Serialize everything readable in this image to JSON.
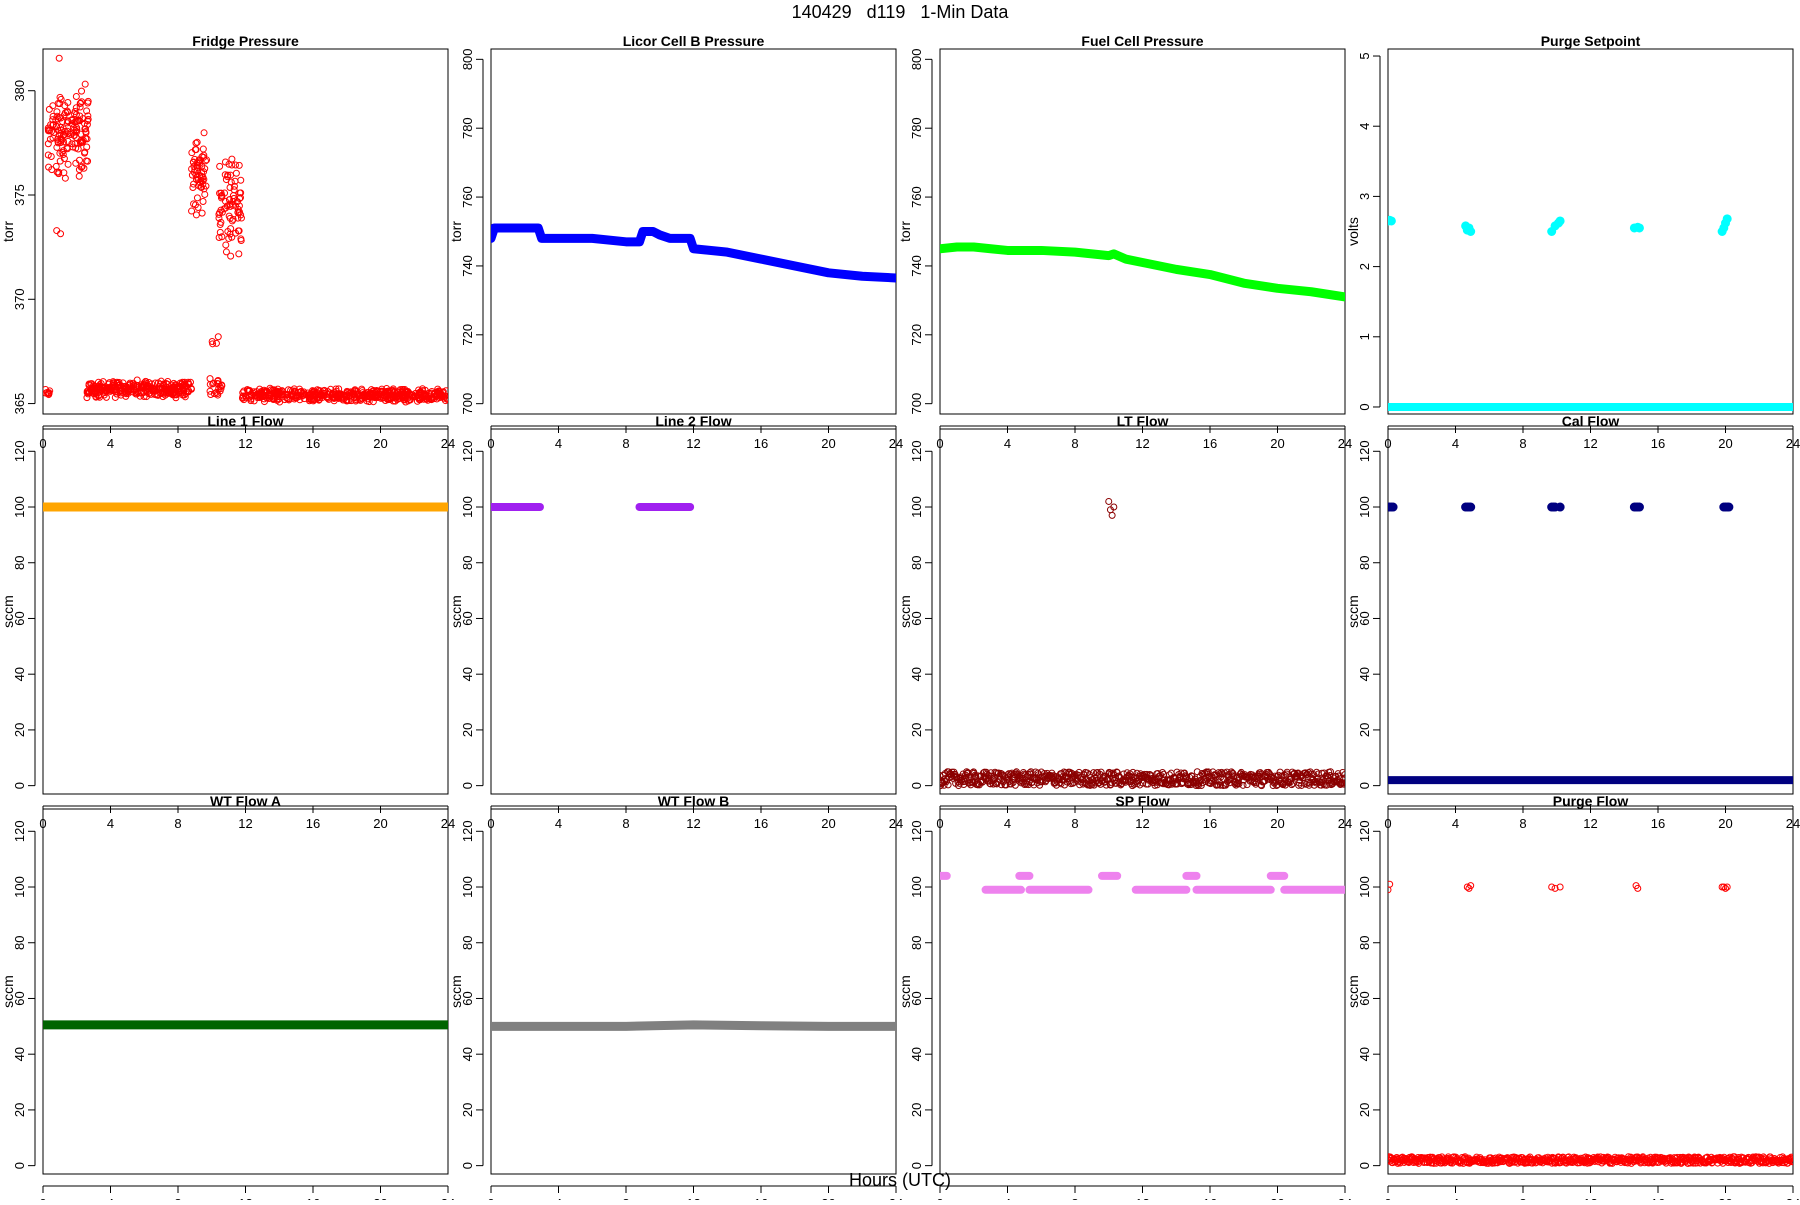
{
  "page": {
    "title": "140429   d119   1-Min Data",
    "xlabel": "Hours (UTC)"
  },
  "chart_data": [
    {
      "type": "scatter",
      "title": "Fridge Pressure",
      "ylabel": "torr",
      "color": "#ff0000",
      "xlim": [
        0,
        24
      ],
      "ylim": [
        364.5,
        382
      ],
      "xticks": [
        0,
        4,
        8,
        12,
        16,
        20,
        24
      ],
      "yticks": [
        365,
        370,
        375,
        380
      ],
      "marker": "open-circle",
      "groups": [
        {
          "x_range": [
            0.1,
            0.4
          ],
          "y_center": 365.5,
          "y_spread": 0.3,
          "n": 8
        },
        {
          "x_range": [
            0.3,
            2.7
          ],
          "y_center": 378,
          "y_spread": 2.5,
          "n": 150
        },
        {
          "x_range": [
            0.8,
            1.2
          ],
          "y_center": 373.2,
          "y_spread": 0.2,
          "n": 2
        },
        {
          "x_range": [
            0.8,
            1.0
          ],
          "y_center": 381.5,
          "y_spread": 0.2,
          "n": 1
        },
        {
          "x_range": [
            2.6,
            8.8
          ],
          "y_center": 365.7,
          "y_spread": 0.45,
          "n": 300
        },
        {
          "x_range": [
            8.8,
            9.7
          ],
          "y_center": 376,
          "y_spread": 2.2,
          "n": 60
        },
        {
          "x_range": [
            9.8,
            10.6
          ],
          "y_center": 365.8,
          "y_spread": 0.5,
          "n": 20
        },
        {
          "x_range": [
            10.0,
            10.4
          ],
          "y_center": 368,
          "y_spread": 0.5,
          "n": 4
        },
        {
          "x_range": [
            10.4,
            11.8
          ],
          "y_center": 374.5,
          "y_spread": 2.6,
          "n": 80
        },
        {
          "x_range": [
            11.8,
            24.0
          ],
          "y_center": 365.4,
          "y_spread": 0.35,
          "n": 520
        }
      ]
    },
    {
      "type": "scatter",
      "title": "Licor Cell B Pressure",
      "ylabel": "torr",
      "color": "#0000ff",
      "xlim": [
        0,
        24
      ],
      "ylim": [
        697,
        803
      ],
      "xticks": [
        0,
        4,
        8,
        12,
        16,
        20,
        24
      ],
      "yticks": [
        700,
        720,
        740,
        760,
        780,
        800
      ],
      "marker": "filled-circle",
      "x": [
        0,
        0.2,
        0.5,
        1,
        2,
        2.8,
        3,
        4,
        6,
        8,
        8.8,
        9,
        9.6,
        10,
        10.6,
        11,
        11.8,
        12,
        14,
        16,
        18,
        20,
        22,
        24
      ],
      "y": [
        748,
        751,
        751,
        751,
        751,
        751,
        748,
        748,
        748,
        747,
        747,
        750,
        750,
        749,
        748,
        748,
        748,
        745,
        744,
        742,
        740,
        738,
        737,
        736.5
      ]
    },
    {
      "type": "scatter",
      "title": "Fuel Cell Pressure",
      "ylabel": "torr",
      "color": "#00ff00",
      "xlim": [
        0,
        24
      ],
      "ylim": [
        697,
        803
      ],
      "xticks": [
        0,
        4,
        8,
        12,
        16,
        20,
        24
      ],
      "yticks": [
        700,
        720,
        740,
        760,
        780,
        800
      ],
      "marker": "filled-circle",
      "x": [
        0,
        1,
        2,
        3,
        4,
        6,
        8,
        9,
        10,
        10.3,
        11,
        12,
        14,
        16,
        18,
        20,
        22,
        24
      ],
      "y": [
        745,
        745.5,
        745.5,
        745,
        744.5,
        744.5,
        744,
        743.5,
        743,
        743.5,
        742,
        741,
        739,
        737.5,
        735,
        733.5,
        732.5,
        731
      ]
    },
    {
      "type": "scatter",
      "title": "Purge Setpoint",
      "ylabel": "volts",
      "color": "#00ffff",
      "xlim": [
        0,
        24
      ],
      "ylim": [
        -0.1,
        5.1
      ],
      "xticks": [
        0,
        4,
        8,
        12,
        16,
        20,
        24
      ],
      "yticks": [
        0,
        1,
        2,
        3,
        4,
        5
      ],
      "marker": "filled-circle",
      "baseline": 0,
      "x": [
        0.0,
        0.1,
        0.2,
        4.6,
        4.7,
        4.8,
        4.9,
        9.7,
        9.9,
        10.1,
        10.2,
        14.6,
        14.8,
        14.9,
        19.8,
        19.9,
        20.0,
        20.1
      ],
      "y": [
        2.65,
        2.66,
        2.65,
        2.58,
        2.52,
        2.55,
        2.5,
        2.5,
        2.58,
        2.62,
        2.65,
        2.55,
        2.56,
        2.55,
        2.5,
        2.55,
        2.62,
        2.68
      ]
    },
    {
      "type": "scatter",
      "title": "Line 1 Flow",
      "ylabel": "sccm",
      "color": "#ffa500",
      "xlim": [
        0,
        24
      ],
      "ylim": [
        -3,
        128
      ],
      "xticks": [
        0,
        4,
        8,
        12,
        16,
        20,
        24
      ],
      "yticks": [
        0,
        20,
        40,
        60,
        80,
        100,
        120
      ],
      "marker": "filled-circle",
      "x": [
        0,
        24
      ],
      "y": [
        100,
        100
      ]
    },
    {
      "type": "scatter",
      "title": "Line 2 Flow",
      "ylabel": "sccm",
      "color": "#a020f0",
      "xlim": [
        0,
        24
      ],
      "ylim": [
        -3,
        128
      ],
      "xticks": [
        0,
        4,
        8,
        12,
        16,
        20,
        24
      ],
      "yticks": [
        0,
        20,
        40,
        60,
        80,
        100,
        120
      ],
      "marker": "filled-circle",
      "x": [
        0,
        2.9,
        8.8,
        11.8
      ],
      "y": [
        100,
        100,
        100,
        100
      ]
    },
    {
      "type": "scatter",
      "title": "LT Flow",
      "ylabel": "sccm",
      "color": "#8b0000",
      "xlim": [
        0,
        24
      ],
      "ylim": [
        -3,
        128
      ],
      "xticks": [
        0,
        4,
        8,
        12,
        16,
        20,
        24
      ],
      "yticks": [
        0,
        20,
        40,
        60,
        80,
        100,
        120
      ],
      "marker": "open-circle",
      "band": {
        "x_range": [
          0,
          24
        ],
        "y_center": 2.5,
        "y_spread": 2.5
      },
      "x": [
        10.0,
        10.1,
        10.2,
        10.3
      ],
      "y": [
        102,
        99,
        97,
        100
      ]
    },
    {
      "type": "scatter",
      "title": "Cal Flow",
      "ylabel": "sccm",
      "color": "#000080",
      "xlim": [
        0,
        24
      ],
      "ylim": [
        -3,
        128
      ],
      "xticks": [
        0,
        4,
        8,
        12,
        16,
        20,
        24
      ],
      "yticks": [
        0,
        20,
        40,
        60,
        80,
        100,
        120
      ],
      "marker": "filled-circle",
      "baseline": 2,
      "x": [
        0.0,
        0.1,
        0.2,
        0.3,
        4.6,
        4.7,
        4.8,
        4.9,
        9.7,
        9.8,
        9.9,
        10.2,
        14.6,
        14.7,
        14.8,
        14.9,
        19.9,
        20.0,
        20.1,
        20.2
      ],
      "y": [
        100,
        100,
        100,
        100,
        100,
        100,
        100,
        100,
        100,
        100,
        100,
        100,
        100,
        100,
        100,
        100,
        100,
        100,
        100,
        100
      ]
    },
    {
      "type": "scatter",
      "title": "WT Flow A",
      "ylabel": "sccm",
      "color": "#006400",
      "xlim": [
        0,
        24
      ],
      "ylim": [
        -3,
        128
      ],
      "xticks": [
        0,
        4,
        8,
        12,
        16,
        20,
        24
      ],
      "yticks": [
        0,
        20,
        40,
        60,
        80,
        100,
        120
      ],
      "marker": "filled-circle",
      "x": [
        0,
        24
      ],
      "y": [
        50.5,
        50.5
      ]
    },
    {
      "type": "scatter",
      "title": "WT Flow B",
      "ylabel": "sccm",
      "color": "#808080",
      "xlim": [
        0,
        24
      ],
      "ylim": [
        -3,
        128
      ],
      "xticks": [
        0,
        4,
        8,
        12,
        16,
        20,
        24
      ],
      "yticks": [
        0,
        20,
        40,
        60,
        80,
        100,
        120
      ],
      "marker": "filled-circle",
      "x": [
        0,
        4,
        8,
        12,
        16,
        20,
        24
      ],
      "y": [
        50,
        50,
        50,
        50.5,
        50.2,
        50,
        50
      ]
    },
    {
      "type": "scatter",
      "title": "SP Flow",
      "ylabel": "sccm",
      "color": "#ee82ee",
      "xlim": [
        0,
        24
      ],
      "ylim": [
        -3,
        128
      ],
      "xticks": [
        0,
        4,
        8,
        12,
        16,
        20,
        24
      ],
      "yticks": [
        0,
        20,
        40,
        60,
        80,
        100,
        120
      ],
      "marker": "filled-circle",
      "segments": [
        {
          "x": [
            0.0,
            0.4
          ],
          "y": 104
        },
        {
          "x": [
            2.7,
            4.8
          ],
          "y": 99
        },
        {
          "x": [
            4.7,
            5.3
          ],
          "y": 104
        },
        {
          "x": [
            5.3,
            8.8
          ],
          "y": 99
        },
        {
          "x": [
            9.6,
            10.5
          ],
          "y": 104
        },
        {
          "x": [
            11.6,
            14.6
          ],
          "y": 99
        },
        {
          "x": [
            14.6,
            15.2
          ],
          "y": 104
        },
        {
          "x": [
            15.2,
            19.6
          ],
          "y": 99
        },
        {
          "x": [
            19.6,
            20.4
          ],
          "y": 104
        },
        {
          "x": [
            20.4,
            24.0
          ],
          "y": 99
        }
      ]
    },
    {
      "type": "scatter",
      "title": "Purge Flow",
      "ylabel": "sccm",
      "color": "#ff0000",
      "xlim": [
        0,
        24
      ],
      "ylim": [
        -3,
        128
      ],
      "xticks": [
        0,
        4,
        8,
        12,
        16,
        20,
        24
      ],
      "yticks": [
        0,
        20,
        40,
        60,
        80,
        100,
        120
      ],
      "marker": "open-circle",
      "band": {
        "x_range": [
          0,
          24
        ],
        "y_center": 2,
        "y_spread": 1.2
      },
      "x": [
        0.0,
        0.1,
        4.7,
        4.8,
        4.9,
        9.7,
        9.9,
        10.2,
        14.7,
        14.8,
        19.8,
        19.9,
        20.0,
        20.1
      ],
      "y": [
        99,
        101,
        100,
        99.5,
        100.5,
        100,
        99.5,
        100,
        100.5,
        99.5,
        100,
        100,
        99.5,
        100
      ]
    }
  ]
}
